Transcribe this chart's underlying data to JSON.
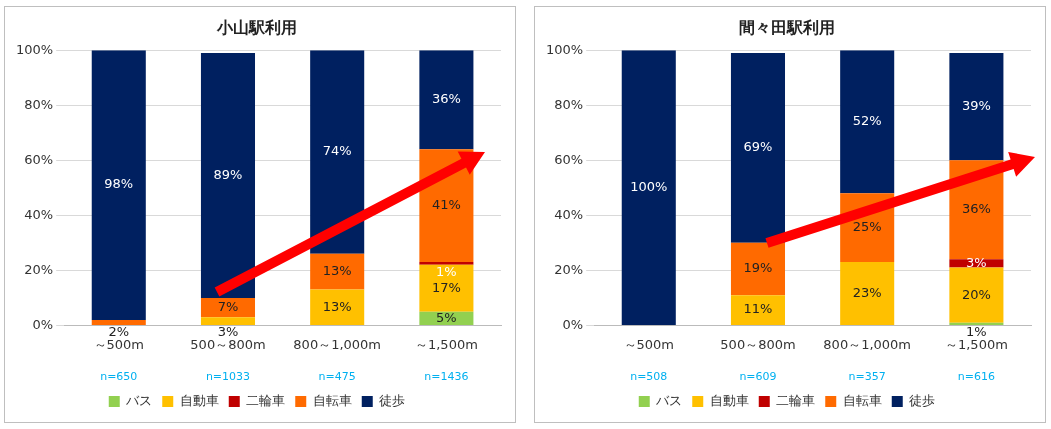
{
  "chart_data": [
    {
      "type": "bar",
      "title": "小山駅利用",
      "stacked": true,
      "categories": [
        "～500m",
        "500～800m",
        "800～1,000m",
        "～1,500m"
      ],
      "series": [
        {
          "name": "バス",
          "color": "#92d050",
          "values": [
            null,
            null,
            null,
            5
          ],
          "value_labels": [
            null,
            null,
            null,
            "5%"
          ]
        },
        {
          "name": "自動車",
          "color": "#ffc000",
          "values": [
            null,
            3,
            13,
            17
          ],
          "value_labels": [
            null,
            "3%",
            "13%",
            "17%"
          ]
        },
        {
          "name": "二輪車",
          "color": "#c00000",
          "values": [
            null,
            null,
            null,
            1
          ],
          "value_labels": [
            null,
            null,
            null,
            "1%"
          ]
        },
        {
          "name": "自転車",
          "color": "#ff6a00",
          "values": [
            2,
            7,
            13,
            41
          ],
          "value_labels": [
            "2%",
            "7%",
            "13%",
            "41%"
          ]
        },
        {
          "name": "徒歩",
          "color": "#002060",
          "values": [
            98,
            89,
            74,
            36
          ],
          "value_labels": [
            "98%",
            "89%",
            "74%",
            "36%"
          ]
        }
      ],
      "ylim": [
        0,
        100
      ],
      "yticks": [
        {
          "value": 0,
          "label": "0%"
        },
        {
          "value": 20,
          "label": "20%"
        },
        {
          "value": 40,
          "label": "40%"
        },
        {
          "value": 60,
          "label": "60%"
        },
        {
          "value": 80,
          "label": "80%"
        },
        {
          "value": 100,
          "label": "100%"
        }
      ],
      "grid": "y",
      "legend": "bottom",
      "annotations": [
        "n=650",
        "n=1033",
        "n=475",
        "n=1436"
      ]
    },
    {
      "type": "bar",
      "title": "間々田駅利用",
      "stacked": true,
      "categories": [
        "～500m",
        "500～800m",
        "800～1,000m",
        "～1,500m"
      ],
      "series": [
        {
          "name": "バス",
          "color": "#92d050",
          "values": [
            null,
            null,
            null,
            1
          ],
          "value_labels": [
            null,
            null,
            null,
            "1%"
          ]
        },
        {
          "name": "自動車",
          "color": "#ffc000",
          "values": [
            null,
            11,
            23,
            20
          ],
          "value_labels": [
            null,
            "11%",
            "23%",
            "20%"
          ]
        },
        {
          "name": "二輪車",
          "color": "#c00000",
          "values": [
            null,
            null,
            null,
            3
          ],
          "value_labels": [
            null,
            null,
            null,
            "3%"
          ]
        },
        {
          "name": "自転車",
          "color": "#ff6a00",
          "values": [
            null,
            19,
            25,
            36
          ],
          "value_labels": [
            null,
            "19%",
            "25%",
            "36%"
          ]
        },
        {
          "name": "徒歩",
          "color": "#002060",
          "values": [
            100,
            69,
            52,
            39
          ],
          "value_labels": [
            "100%",
            "69%",
            "52%",
            "39%"
          ]
        }
      ],
      "ylim": [
        0,
        100
      ],
      "yticks": [
        {
          "value": 0,
          "label": "0%"
        },
        {
          "value": 20,
          "label": "20%"
        },
        {
          "value": 40,
          "label": "40%"
        },
        {
          "value": 60,
          "label": "60%"
        },
        {
          "value": 80,
          "label": "80%"
        },
        {
          "value": 100,
          "label": "100%"
        }
      ],
      "grid": "y",
      "legend": "bottom",
      "annotations": [
        "n=508",
        "n=609",
        "n=357",
        "n=616"
      ]
    }
  ]
}
